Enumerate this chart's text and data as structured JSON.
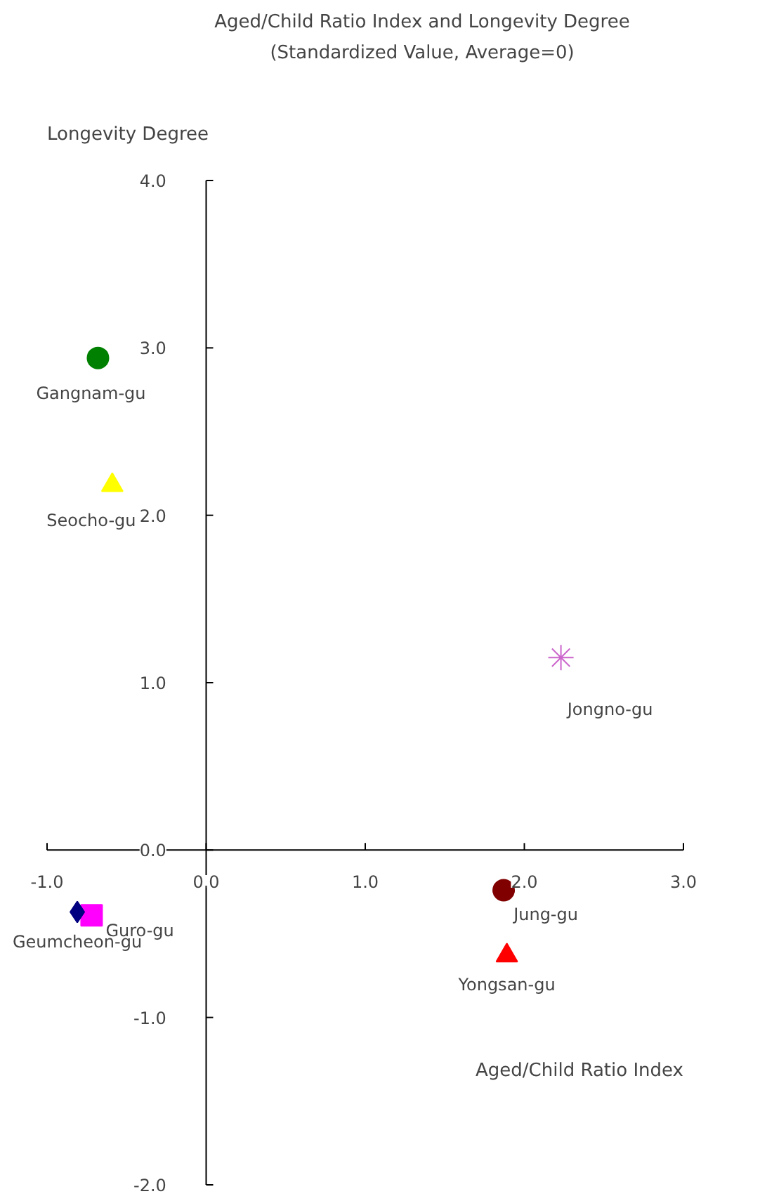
{
  "chart_data": {
    "type": "scatter",
    "title": "Aged/Child Ratio Index and Longevity Degree",
    "subtitle": "(Standardized Value, Average=0)",
    "xlabel": "Aged/Child Ratio Index",
    "ylabel": "Longevity Degree",
    "xlim": [
      -1.0,
      3.0
    ],
    "ylim": [
      -2.0,
      4.0
    ],
    "xticks": [
      {
        "value": -1.0,
        "label": "-1.0"
      },
      {
        "value": 0.0,
        "label": "0.0"
      },
      {
        "value": 1.0,
        "label": "1.0"
      },
      {
        "value": 2.0,
        "label": "2.0"
      },
      {
        "value": 3.0,
        "label": "3.0"
      }
    ],
    "yticks": [
      {
        "value": -2.0,
        "label": "-2.0"
      },
      {
        "value": -1.0,
        "label": "-1.0"
      },
      {
        "value": 0.0,
        "label": "0.0"
      },
      {
        "value": 1.0,
        "label": "1.0"
      },
      {
        "value": 2.0,
        "label": "2.0"
      },
      {
        "value": 3.0,
        "label": "3.0"
      },
      {
        "value": 4.0,
        "label": "4.0"
      }
    ],
    "grid": false,
    "legend": false,
    "series": [
      {
        "name": "Gangnam-gu",
        "color": "#008000",
        "marker": "circle",
        "x": [
          -0.68
        ],
        "values": [
          2.94
        ]
      },
      {
        "name": "Seocho-gu",
        "color": "#ffff00",
        "marker": "triangle",
        "x": [
          -0.59
        ],
        "values": [
          2.18
        ]
      },
      {
        "name": "Jongno-gu",
        "color": "#cc66cc",
        "marker": "cross",
        "x": [
          2.23
        ],
        "values": [
          1.15
        ]
      },
      {
        "name": "Jung-gu",
        "color": "#800000",
        "marker": "circle",
        "x": [
          1.87
        ],
        "values": [
          -0.24
        ]
      },
      {
        "name": "Yongsan-gu",
        "color": "#ff0000",
        "marker": "triangle",
        "x": [
          1.89
        ],
        "values": [
          -0.63
        ]
      },
      {
        "name": "Guro-gu",
        "color": "#ff00ff",
        "marker": "square",
        "x": [
          -0.72
        ],
        "values": [
          -0.39
        ]
      },
      {
        "name": "Geumcheon-gu",
        "color": "#000080",
        "marker": "diamond",
        "x": [
          -0.81
        ],
        "values": [
          -0.37
        ]
      }
    ]
  }
}
